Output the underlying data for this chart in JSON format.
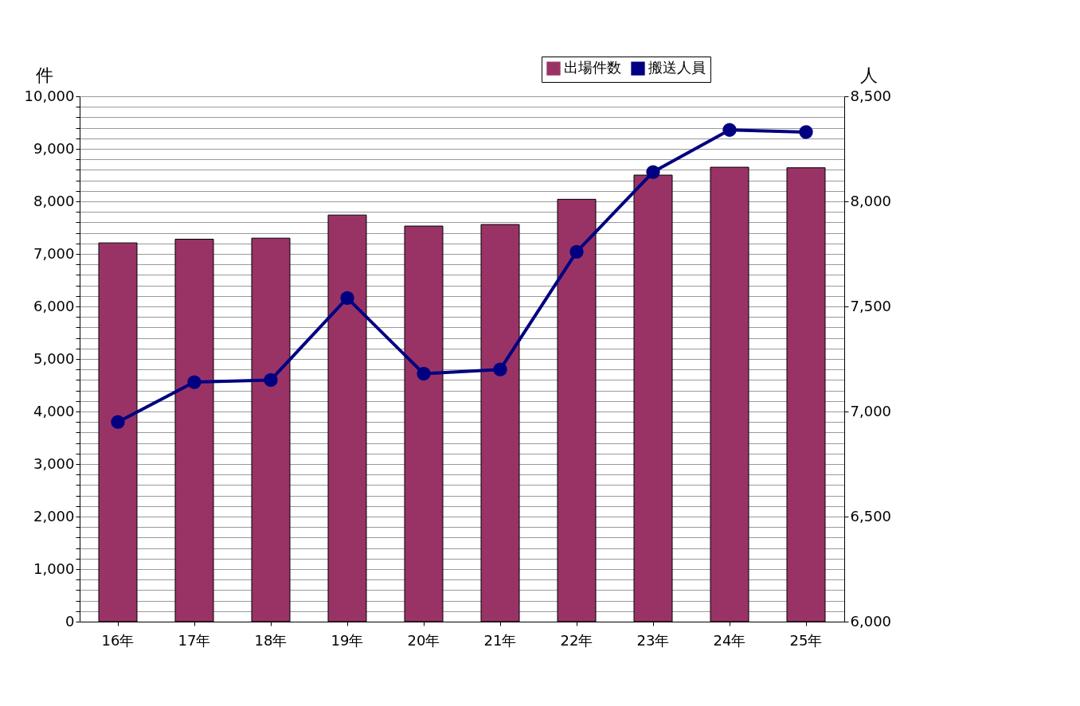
{
  "chart_data": {
    "type": "bar",
    "ylabel": "件",
    "y2label": "人",
    "categories": [
      "16年",
      "17年",
      "18年",
      "19年",
      "20年",
      "21年",
      "22年",
      "23年",
      "24年",
      "25年"
    ],
    "series": [
      {
        "name": "出場件数",
        "color": "#993366",
        "values": [
          7210,
          7280,
          7300,
          7740,
          7530,
          7560,
          8040,
          8500,
          8650,
          8640
        ]
      },
      {
        "name": "搬送人員",
        "type": "line",
        "axis": "y2",
        "color": "#000080",
        "marker": "circle",
        "values": [
          6950,
          7140,
          7150,
          7540,
          7180,
          7200,
          7760,
          8140,
          8340,
          8330
        ]
      }
    ],
    "ylim": [
      0,
      10000
    ],
    "yticks": [
      0,
      {
        "value": 200,
        "label": null
      },
      {
        "value": 400,
        "label": null
      },
      {
        "value": 600,
        "label": null
      },
      {
        "value": 800,
        "label": null
      },
      {
        "value": 1000,
        "label": "1,000"
      },
      {
        "value": 1200,
        "label": null
      },
      {
        "value": 1400,
        "label": null
      },
      {
        "value": 1600,
        "label": null
      },
      {
        "value": 1800,
        "label": null
      },
      {
        "value": 2000,
        "label": "2,000"
      },
      {
        "value": 2200,
        "label": null
      },
      {
        "value": 2400,
        "label": null
      },
      {
        "value": 2600,
        "label": null
      },
      {
        "value": 2800,
        "label": null
      },
      {
        "value": 3000,
        "label": "3,000"
      },
      {
        "value": 3200,
        "label": null
      },
      {
        "value": 3400,
        "label": null
      },
      {
        "value": 3600,
        "label": null
      },
      {
        "value": 3800,
        "label": null
      },
      {
        "value": 4000,
        "label": "4,000"
      },
      {
        "value": 4200,
        "label": null
      },
      {
        "value": 4400,
        "label": null
      },
      {
        "value": 4600,
        "label": null
      },
      {
        "value": 4800,
        "label": null
      },
      {
        "value": 5000,
        "label": "5,000"
      },
      {
        "value": 5200,
        "label": null
      },
      {
        "value": 5400,
        "label": null
      },
      {
        "value": 5600,
        "label": null
      },
      {
        "value": 5800,
        "label": null
      },
      {
        "value": 6000,
        "label": "6,000"
      },
      {
        "value": 6200,
        "label": null
      },
      {
        "value": 6400,
        "label": null
      },
      {
        "value": 6600,
        "label": null
      },
      {
        "value": 6800,
        "label": null
      },
      {
        "value": 7000,
        "label": "7,000"
      },
      {
        "value": 7200,
        "label": null
      },
      {
        "value": 7400,
        "label": null
      },
      {
        "value": 7600,
        "label": null
      },
      {
        "value": 7800,
        "label": null
      },
      {
        "value": 8000,
        "label": "8,000"
      },
      {
        "value": 8200,
        "label": null
      },
      {
        "value": 8400,
        "label": null
      },
      {
        "value": 8600,
        "label": null
      },
      {
        "value": 8800,
        "label": null
      },
      {
        "value": 9000,
        "label": "9,000"
      },
      {
        "value": 9200,
        "label": null
      },
      {
        "value": 9400,
        "label": null
      },
      {
        "value": 9600,
        "label": null
      },
      {
        "value": 9800,
        "label": null
      },
      {
        "value": 10000,
        "label": "10,000"
      }
    ],
    "y2lim": [
      6000,
      8500
    ],
    "y2ticks": [
      {
        "value": 6000,
        "label": "6,000"
      },
      {
        "value": 6500,
        "label": "6,500"
      },
      {
        "value": 7000,
        "label": "7,000"
      },
      {
        "value": 7500,
        "label": "7,500"
      },
      {
        "value": 8000,
        "label": "8,000"
      },
      {
        "value": 8500,
        "label": "8,500"
      }
    ],
    "grid": "y",
    "legend": "top right"
  }
}
